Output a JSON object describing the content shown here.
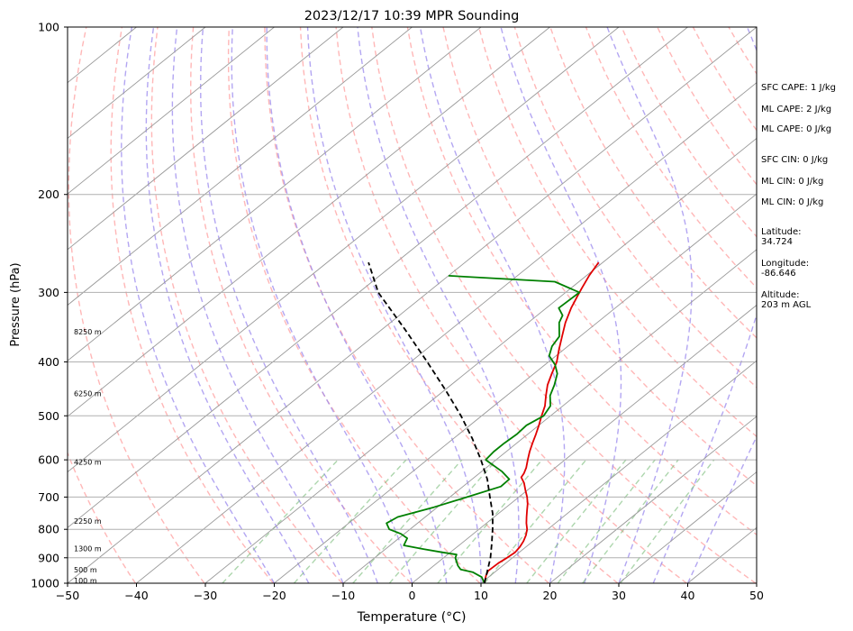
{
  "chart_data": {
    "type": "line",
    "title": "2023/12/17 10:39 MPR Sounding",
    "xlabel": "Temperature (°C)",
    "ylabel": "Pressure (hPa)",
    "xlim": [
      -50,
      50
    ],
    "ylim": [
      1000,
      100
    ],
    "y_scale": "log",
    "x_ticks": [
      -50,
      -40,
      -30,
      -20,
      -10,
      0,
      10,
      20,
      30,
      40,
      50
    ],
    "y_ticks": [
      100,
      200,
      300,
      400,
      500,
      600,
      700,
      800,
      900,
      1000
    ],
    "grid": true,
    "skew": "skew-T log-P diagram",
    "series": [
      {
        "color": "#e00000",
        "points": [
          [
            10.5,
            1000
          ],
          [
            9.4,
            970
          ],
          [
            8.8,
            950
          ],
          [
            8.9,
            920
          ],
          [
            9.2,
            900
          ],
          [
            9.4,
            880
          ],
          [
            9.1,
            860
          ],
          [
            8.6,
            840
          ],
          [
            7.9,
            820
          ],
          [
            7.0,
            800
          ],
          [
            5.8,
            780
          ],
          [
            4.7,
            760
          ],
          [
            3.6,
            740
          ],
          [
            2.5,
            720
          ],
          [
            1.2,
            700
          ],
          [
            -0.3,
            680
          ],
          [
            -1.8,
            660
          ],
          [
            -3.2,
            645
          ],
          [
            -3.5,
            635
          ],
          [
            -4.2,
            620
          ],
          [
            -5.4,
            600
          ],
          [
            -6.6,
            580
          ],
          [
            -7.7,
            560
          ],
          [
            -8.8,
            540
          ],
          [
            -10.0,
            520
          ],
          [
            -11.3,
            500
          ],
          [
            -12.6,
            480
          ],
          [
            -14.3,
            460
          ],
          [
            -16.0,
            440
          ],
          [
            -17.4,
            420
          ],
          [
            -18.8,
            400
          ],
          [
            -20.7,
            380
          ],
          [
            -22.6,
            360
          ],
          [
            -24.6,
            340
          ],
          [
            -26.4,
            320
          ],
          [
            -27.6,
            305
          ],
          [
            -28.4,
            295
          ],
          [
            -29.6,
            280
          ],
          [
            -30.6,
            265
          ]
        ]
      },
      {
        "color": "#008000",
        "points": [
          [
            10.5,
            1000
          ],
          [
            9.0,
            975
          ],
          [
            6.8,
            955
          ],
          [
            4.6,
            945
          ],
          [
            3.5,
            930
          ],
          [
            2.6,
            915
          ],
          [
            1.7,
            900
          ],
          [
            1.3,
            888
          ],
          [
            -1.2,
            880
          ],
          [
            -4.5,
            868
          ],
          [
            -8.0,
            855
          ],
          [
            -8.8,
            830
          ],
          [
            -10.5,
            815
          ],
          [
            -13.0,
            800
          ],
          [
            -14.5,
            780
          ],
          [
            -14.0,
            760
          ],
          [
            -10.5,
            730
          ],
          [
            -7.5,
            700
          ],
          [
            -4.5,
            670
          ],
          [
            -4.6,
            650
          ],
          [
            -7.0,
            630
          ],
          [
            -11.5,
            600
          ],
          [
            -11.8,
            580
          ],
          [
            -11.8,
            560
          ],
          [
            -11.6,
            540
          ],
          [
            -11.8,
            520
          ],
          [
            -11.0,
            500
          ],
          [
            -11.8,
            480
          ],
          [
            -13.7,
            460
          ],
          [
            -15.0,
            440
          ],
          [
            -16.6,
            420
          ],
          [
            -18.5,
            405
          ],
          [
            -21.0,
            390
          ],
          [
            -22.3,
            375
          ],
          [
            -23.0,
            360
          ],
          [
            -25.5,
            340
          ],
          [
            -26.3,
            330
          ],
          [
            -28.2,
            320
          ],
          [
            -28.0,
            300
          ],
          [
            -33.5,
            287
          ],
          [
            -50.0,
            280
          ]
        ]
      },
      {
        "color": "#000000",
        "dashed": true,
        "points": [
          [
            10.5,
            1000
          ],
          [
            8.7,
            950
          ],
          [
            6.8,
            900
          ],
          [
            4.5,
            850
          ],
          [
            2.0,
            800
          ],
          [
            -0.8,
            750
          ],
          [
            -4.2,
            700
          ],
          [
            -7.8,
            650
          ],
          [
            -12.2,
            600
          ],
          [
            -17.2,
            550
          ],
          [
            -23.0,
            500
          ],
          [
            -29.8,
            450
          ],
          [
            -37.6,
            400
          ],
          [
            -46.6,
            350
          ],
          [
            -57.2,
            300
          ],
          [
            -64.0,
            265
          ]
        ]
      }
    ],
    "height_labels": [
      "8250 m",
      "6250 m",
      "4250 m",
      "2250 m",
      "1300 m",
      "500 m",
      "100 m"
    ],
    "reference_lines": {
      "dry_adiabat_color": "#ff9999",
      "moist_adiabat_color": "#9988ee",
      "mixing_ratio_color": "#77bb77",
      "isotherm_color": "#999999"
    }
  },
  "sidebar": {
    "sfc_cape": "SFC CAPE: 1 J/kg",
    "ml_cape": "ML CAPE: 2 J/kg",
    "ml_cape2": "ML CAPE: 0 J/kg",
    "sfc_cin": "SFC CIN: 0 J/kg",
    "ml_cin": "ML CIN: 0 J/kg",
    "ml_cin2": "ML CIN: 0 J/kg",
    "lat_label": "Latitude:",
    "lat_value": "34.724",
    "lon_label": "Longitude:",
    "lon_value": "-86.646",
    "alt_label": "Altitude:",
    "alt_value": "203 m AGL"
  }
}
